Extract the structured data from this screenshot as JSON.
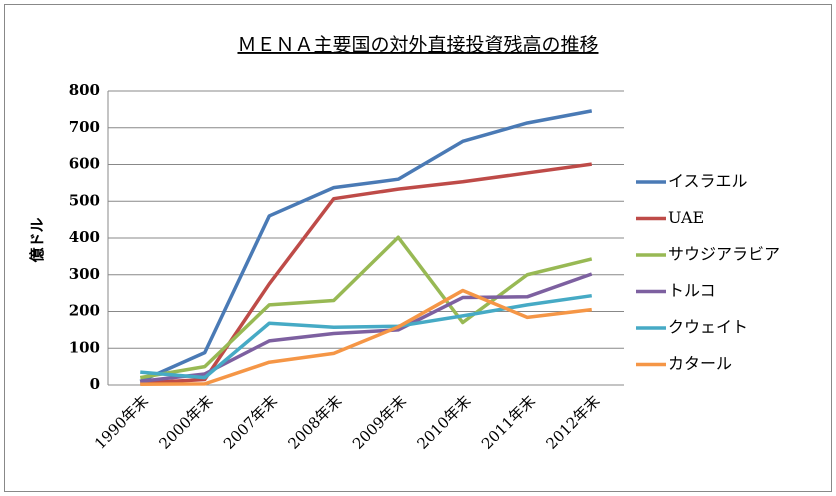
{
  "chart_data": {
    "type": "line",
    "title": "ＭＥＮＡ主要国の対外直接投資残高の推移",
    "y_label": "億ドル",
    "categories": [
      "1990年末",
      "2000年末",
      "2007年末",
      "2008年末",
      "2009年末",
      "2010年末",
      "2011年末",
      "2012年末"
    ],
    "series": [
      {
        "name": "イスラエル",
        "color": "#4a7ab5",
        "values": [
          10,
          88,
          460,
          537,
          560,
          663,
          713,
          746
        ]
      },
      {
        "name": "UAE",
        "color": "#be4b48",
        "values": [
          5,
          15,
          275,
          507,
          533,
          553,
          577,
          601
        ]
      },
      {
        "name": "サウジアラビア",
        "color": "#98b954",
        "values": [
          20,
          50,
          218,
          230,
          402,
          170,
          300,
          343
        ]
      },
      {
        "name": "トルコ",
        "color": "#7d60a0",
        "values": [
          10,
          30,
          120,
          140,
          150,
          238,
          240,
          302
        ]
      },
      {
        "name": "クウェイト",
        "color": "#46aac5",
        "values": [
          35,
          20,
          168,
          157,
          160,
          188,
          218,
          243
        ]
      },
      {
        "name": "カタール",
        "color": "#f59646",
        "values": [
          2,
          3,
          62,
          86,
          158,
          257,
          184,
          205
        ]
      }
    ],
    "ylim": [
      0,
      800
    ],
    "yticks": [
      0,
      100,
      200,
      300,
      400,
      500,
      600,
      700,
      800
    ],
    "grid": true,
    "legend": "right"
  }
}
